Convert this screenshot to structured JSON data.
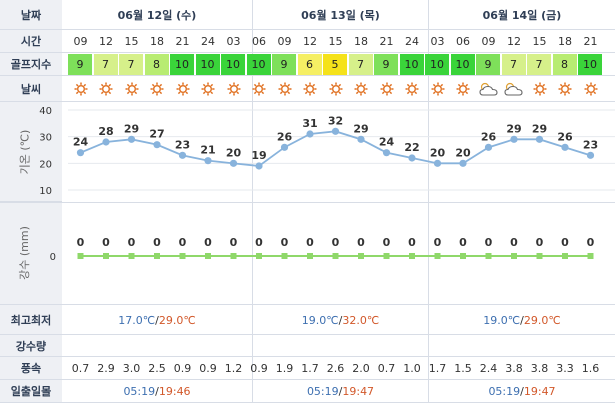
{
  "labels": {
    "date": "날짜",
    "time": "시간",
    "golf": "골프지수",
    "weather": "날씨",
    "minmax": "최고최저",
    "rain": "강수량",
    "wind": "풍속",
    "sun": "일출일몰"
  },
  "axis_labels": {
    "temp": "기온 (℃)",
    "precip": "강수 (mm)"
  },
  "dates": [
    "06월 12일 (수)",
    "06월 13일 (목)",
    "06월 14일 (금)"
  ],
  "times": [
    "09",
    "12",
    "15",
    "18",
    "21",
    "24",
    "03",
    "06",
    "09",
    "12",
    "15",
    "18",
    "21",
    "24",
    "03",
    "06",
    "09",
    "12",
    "15",
    "18",
    "21"
  ],
  "golf_index": [
    9,
    7,
    7,
    8,
    10,
    10,
    10,
    10,
    9,
    6,
    5,
    7,
    9,
    10,
    10,
    10,
    9,
    7,
    7,
    8,
    10
  ],
  "colors": {
    "golf_10": "#3ad43a",
    "golf_9": "#7ee05a",
    "golf_8": "#b8ec72",
    "golf_7": "#d6f08a",
    "golf_6": "#f5ef64",
    "golf_5": "#f5e21a",
    "temp_line": "#88b3dc",
    "precip_line": "#8fd86a",
    "temp_min": "#3d6fb0",
    "temp_max": "#d2582a"
  },
  "weather_icons": [
    "sun-icon",
    "sun-icon",
    "sun-icon",
    "sun-icon",
    "sun-icon",
    "sun-icon",
    "sun-icon",
    "sun-icon",
    "sun-icon",
    "sun-icon",
    "sun-icon",
    "sun-icon",
    "sun-icon",
    "sun-icon",
    "sun-icon",
    "sun-icon",
    "partly-cloudy-icon",
    "partly-cloudy-icon",
    "sun-icon",
    "sun-icon",
    "sun-icon"
  ],
  "chart_data": [
    {
      "type": "line",
      "ylabel": "기온 (℃)",
      "ylim": [
        10,
        40
      ],
      "yticks": [
        10,
        20,
        30,
        40
      ],
      "x": [
        "09",
        "12",
        "15",
        "18",
        "21",
        "24",
        "03",
        "06",
        "09",
        "12",
        "15",
        "18",
        "21",
        "24",
        "03",
        "06",
        "09",
        "12",
        "15",
        "18",
        "21"
      ],
      "values": [
        24,
        28,
        29,
        27,
        23,
        21,
        20,
        19,
        26,
        31,
        32,
        29,
        24,
        22,
        20,
        20,
        26,
        29,
        29,
        26,
        23
      ],
      "grid": true
    },
    {
      "type": "line",
      "ylabel": "강수 (mm)",
      "yticks": [
        0
      ],
      "x": [
        "09",
        "12",
        "15",
        "18",
        "21",
        "24",
        "03",
        "06",
        "09",
        "12",
        "15",
        "18",
        "21",
        "24",
        "03",
        "06",
        "09",
        "12",
        "15",
        "18",
        "21"
      ],
      "values": [
        0,
        0,
        0,
        0,
        0,
        0,
        0,
        0,
        0,
        0,
        0,
        0,
        0,
        0,
        0,
        0,
        0,
        0,
        0,
        0,
        0
      ]
    }
  ],
  "minmax": [
    {
      "min": "17.0℃",
      "sep": "/",
      "max": "29.0℃"
    },
    {
      "min": "19.0℃",
      "sep": "/",
      "max": "32.0℃"
    },
    {
      "min": "19.0℃",
      "sep": "/",
      "max": "29.0℃"
    }
  ],
  "wind": [
    "0.7",
    "2.9",
    "3.0",
    "2.5",
    "0.9",
    "0.9",
    "1.2",
    "0.9",
    "1.9",
    "1.7",
    "2.6",
    "2.0",
    "0.7",
    "1.0",
    "1.7",
    "1.5",
    "2.4",
    "3.8",
    "3.8",
    "3.3",
    "1.6"
  ],
  "sunrise_sunset": [
    {
      "rise": "05:19",
      "sep": "/",
      "set": "19:46"
    },
    {
      "rise": "05:19",
      "sep": "/",
      "set": "19:47"
    },
    {
      "rise": "05:19",
      "sep": "/",
      "set": "19:47"
    }
  ]
}
